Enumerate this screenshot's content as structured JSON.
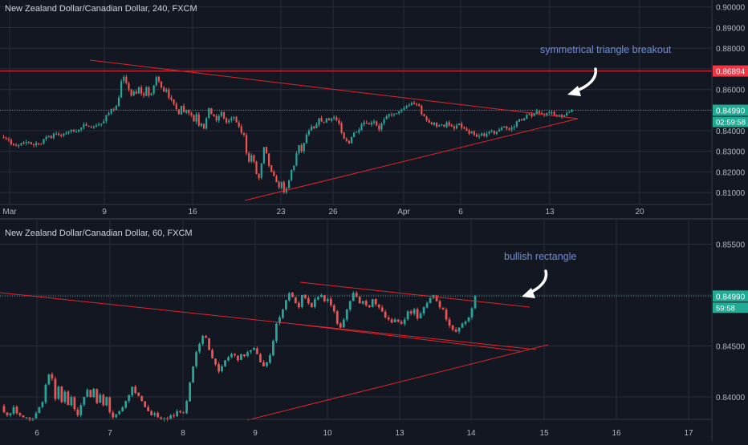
{
  "theme": {
    "background": "#131722",
    "grid": "#2a2e39",
    "axis_text": "#b2b5be",
    "up_candle": "#26a69a",
    "down_candle": "#ef5350",
    "trendline": "#e0252b",
    "annotation_text": "#6f8fd8",
    "arrow": "#ffffff",
    "badge_red": "#f23645",
    "badge_green": "#22ab94"
  },
  "chart_data": [
    {
      "type": "candlestick",
      "title": "New Zealand Dollar/Canadian Dollar, 240, FXCM",
      "x_ticks": [
        "Mar",
        "9",
        "16",
        "23",
        "26",
        "Apr",
        "6",
        "13",
        "20"
      ],
      "y_ticks": [
        "0.81000",
        "0.82000",
        "0.83000",
        "0.84000",
        "0.85000",
        "0.86000",
        "0.87000",
        "0.88000",
        "0.89000",
        "0.90000"
      ],
      "ylim": [
        0.8042,
        0.9034
      ],
      "grid": true,
      "price_labels": [
        {
          "value": 0.86894,
          "text": "0.86894",
          "style": "red"
        },
        {
          "value": 0.8499,
          "text": "0.84990",
          "style": "green"
        },
        {
          "text": "02:59:58",
          "style": "timer"
        }
      ],
      "horizontal_line": 0.86894,
      "annotation": "symmetrical triangle breakout",
      "candles": [
        0.8365,
        0.836,
        0.8355,
        0.8335,
        0.833,
        0.8325,
        0.833,
        0.834,
        0.834,
        0.8345,
        0.8345,
        0.8335,
        0.833,
        0.834,
        0.8335,
        0.8335,
        0.836,
        0.837,
        0.8375,
        0.8365,
        0.8385,
        0.8385,
        0.838,
        0.8375,
        0.8385,
        0.839,
        0.8395,
        0.8405,
        0.8395,
        0.8395,
        0.8405,
        0.8415,
        0.843,
        0.8425,
        0.842,
        0.8415,
        0.842,
        0.8425,
        0.843,
        0.8435,
        0.8445,
        0.8475,
        0.8485,
        0.8505,
        0.85,
        0.852,
        0.856,
        0.864,
        0.866,
        0.863,
        0.86,
        0.857,
        0.859,
        0.858,
        0.861,
        0.858,
        0.857,
        0.861,
        0.857,
        0.858,
        0.862,
        0.866,
        0.864,
        0.861,
        0.859,
        0.86,
        0.856,
        0.855,
        0.853,
        0.8505,
        0.848,
        0.852,
        0.849,
        0.85,
        0.8485,
        0.8475,
        0.8445,
        0.848,
        0.8425,
        0.8435,
        0.841,
        0.846,
        0.851,
        0.848,
        0.847,
        0.845,
        0.847,
        0.849,
        0.846,
        0.844,
        0.845,
        0.846,
        0.8465,
        0.844,
        0.842,
        0.839,
        0.838,
        0.829,
        0.825,
        0.828,
        0.825,
        0.819,
        0.817,
        0.824,
        0.832,
        0.829,
        0.823,
        0.82,
        0.818,
        0.815,
        0.8125,
        0.815,
        0.81,
        0.812,
        0.816,
        0.821,
        0.823,
        0.829,
        0.833,
        0.83,
        0.834,
        0.838,
        0.84,
        0.842,
        0.841,
        0.843,
        0.846,
        0.8445,
        0.844,
        0.846,
        0.845,
        0.846,
        0.8465,
        0.845,
        0.8435,
        0.839,
        0.836,
        0.835,
        0.834,
        0.837,
        0.839,
        0.8395,
        0.8405,
        0.843,
        0.844,
        0.8435,
        0.843,
        0.844,
        0.8445,
        0.8425,
        0.8405,
        0.8435,
        0.8455,
        0.847,
        0.848,
        0.8475,
        0.848,
        0.8485,
        0.8495,
        0.85,
        0.851,
        0.852,
        0.8525,
        0.8535,
        0.853,
        0.8525,
        0.852,
        0.848,
        0.847,
        0.845,
        0.844,
        0.843,
        0.844,
        0.842,
        0.8425,
        0.843,
        0.842,
        0.844,
        0.8425,
        0.842,
        0.841,
        0.8425,
        0.8435,
        0.8415,
        0.841,
        0.84,
        0.8385,
        0.8395,
        0.838,
        0.837,
        0.8375,
        0.8385,
        0.8375,
        0.8385,
        0.8395,
        0.84,
        0.8385,
        0.8395,
        0.8405,
        0.8415,
        0.842,
        0.841,
        0.8405,
        0.8415,
        0.842,
        0.8445,
        0.8455,
        0.845,
        0.846,
        0.8475,
        0.848,
        0.847,
        0.8485,
        0.8495,
        0.8485,
        0.848,
        0.8475,
        0.8485,
        0.849,
        0.849,
        0.8475,
        0.847,
        0.8475,
        0.8465,
        0.8475,
        0.8485,
        0.849,
        0.8499
      ]
    },
    {
      "type": "candlestick",
      "title": "New Zealand Dollar/Canadian Dollar, 60, FXCM",
      "x_ticks": [
        "6",
        "7",
        "8",
        "9",
        "10",
        "13",
        "14",
        "15",
        "16",
        "17"
      ],
      "y_ticks": [
        "0.84000",
        "0.84500",
        "0.85000",
        "0.85500"
      ],
      "ylim": [
        0.8378,
        0.8574
      ],
      "grid": true,
      "price_labels": [
        {
          "value": 0.8499,
          "text": "0.84990",
          "style": "green"
        },
        {
          "text": "59:58",
          "style": "timer"
        }
      ],
      "annotation": "bullish rectangle",
      "candles": [
        0.8385,
        0.8382,
        0.8384,
        0.839,
        0.8384,
        0.8382,
        0.838,
        0.838,
        0.8377,
        0.8379,
        0.8384,
        0.839,
        0.8395,
        0.8412,
        0.8422,
        0.8418,
        0.8398,
        0.841,
        0.8395,
        0.8405,
        0.8392,
        0.84,
        0.8388,
        0.8382,
        0.8392,
        0.84,
        0.8407,
        0.84,
        0.8408,
        0.8394,
        0.8402,
        0.8392,
        0.84,
        0.8385,
        0.838,
        0.8383,
        0.8386,
        0.839,
        0.8396,
        0.8402,
        0.841,
        0.8404,
        0.8401,
        0.8396,
        0.839,
        0.8386,
        0.8382,
        0.8384,
        0.838,
        0.8378,
        0.8379,
        0.8378,
        0.8382,
        0.8381,
        0.8386,
        0.8385,
        0.8384,
        0.8396,
        0.8414,
        0.843,
        0.8444,
        0.8452,
        0.846,
        0.8458,
        0.8446,
        0.8438,
        0.8432,
        0.8425,
        0.843,
        0.8436,
        0.8439,
        0.8442,
        0.8441,
        0.8436,
        0.8442,
        0.844,
        0.8444,
        0.8446,
        0.8448,
        0.8442,
        0.8434,
        0.843,
        0.8434,
        0.8441,
        0.8455,
        0.8472,
        0.8478,
        0.8486,
        0.8495,
        0.8502,
        0.8498,
        0.8492,
        0.8488,
        0.85,
        0.8497,
        0.8492,
        0.8488,
        0.8496,
        0.8498,
        0.85,
        0.8494,
        0.8496,
        0.849,
        0.8484,
        0.8472,
        0.8468,
        0.8476,
        0.8486,
        0.8494,
        0.8502,
        0.8498,
        0.8492,
        0.8494,
        0.849,
        0.8488,
        0.8496,
        0.8491,
        0.8488,
        0.8484,
        0.8478,
        0.8476,
        0.8473,
        0.8476,
        0.8474,
        0.8472,
        0.8476,
        0.8484,
        0.8482,
        0.8486,
        0.8477,
        0.8482,
        0.8488,
        0.8492,
        0.8497,
        0.85,
        0.8494,
        0.8488,
        0.8486,
        0.8476,
        0.847,
        0.8466,
        0.8464,
        0.8468,
        0.8472,
        0.8474,
        0.8478,
        0.8487,
        0.8499
      ]
    }
  ]
}
